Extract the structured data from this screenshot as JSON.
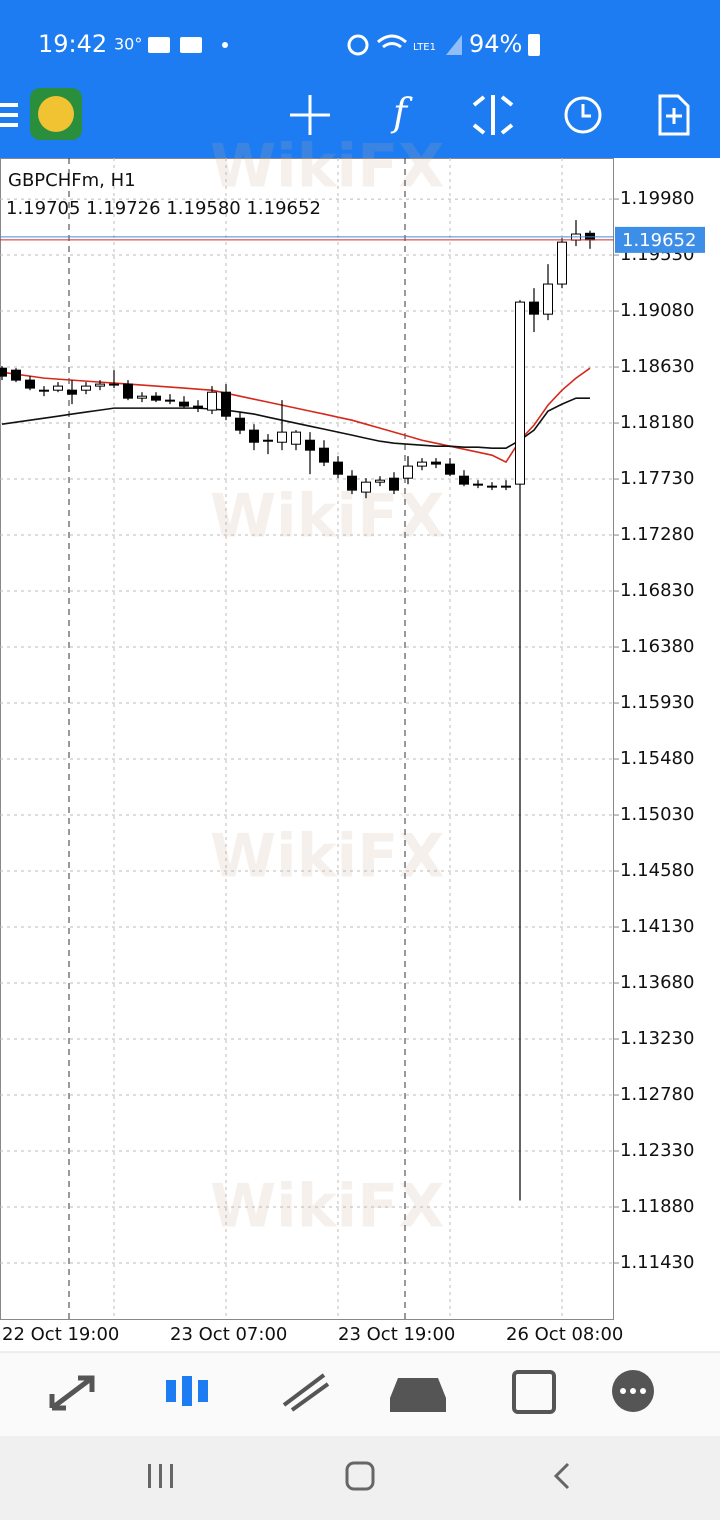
{
  "status_bar": {
    "time": "19:42",
    "temp": "30°",
    "network": "LTE1",
    "battery": "94%"
  },
  "watermark": "WikiFX",
  "chart_data": {
    "type": "candlestick",
    "title": "GBPCHFm, H1",
    "subtitle": "1.19705 1.19726 1.19580 1.19652",
    "categories": [
      "22 Oct 19:00",
      null,
      null,
      null,
      null,
      null,
      null,
      null,
      null,
      null,
      null,
      null,
      "23 Oct 07:00",
      null,
      null,
      null,
      null,
      null,
      null,
      null,
      null,
      null,
      null,
      null,
      "23 Oct 19:00",
      null,
      null,
      null,
      null,
      null,
      null,
      null,
      null,
      null,
      null,
      null,
      "26 Oct 08:00",
      null,
      null,
      null,
      null,
      null,
      null
    ],
    "open": [
      1.18621,
      1.18605,
      1.18525,
      1.18444,
      1.18444,
      1.18444,
      1.18444,
      1.18477,
      1.18493,
      1.18493,
      1.1838,
      1.18396,
      1.18364,
      1.18348,
      1.18316,
      1.18284,
      1.18428,
      1.18219,
      1.18123,
      1.18042,
      1.18026,
      1.1801,
      1.18042,
      1.17978,
      1.17866,
      1.17753,
      1.17625,
      1.17705,
      1.17737,
      1.17737,
      1.17834,
      1.17866,
      1.1785,
      1.17753,
      1.17689,
      1.17673,
      1.17673,
      1.17689,
      1.19152,
      1.19055,
      1.19297,
      1.1965,
      1.19705
    ],
    "high": [
      1.18637,
      1.18621,
      1.18557,
      1.18477,
      1.18509,
      1.18525,
      1.18509,
      1.18525,
      1.18605,
      1.18525,
      1.18428,
      1.18428,
      1.18412,
      1.18396,
      1.18364,
      1.18477,
      1.18493,
      1.18268,
      1.18171,
      1.18091,
      1.18364,
      1.18123,
      1.18107,
      1.18042,
      1.17914,
      1.17801,
      1.17737,
      1.17753,
      1.17785,
      1.17914,
      1.17898,
      1.17898,
      1.17898,
      1.17801,
      1.17721,
      1.17705,
      1.17721,
      1.19168,
      1.19264,
      1.19457,
      1.19666,
      1.19811,
      1.19726
    ],
    "low": [
      1.18525,
      1.18509,
      1.18444,
      1.18396,
      1.18428,
      1.18332,
      1.18412,
      1.18444,
      1.18461,
      1.18364,
      1.18348,
      1.18348,
      1.18332,
      1.183,
      1.18268,
      1.18252,
      1.18203,
      1.18091,
      1.17962,
      1.1793,
      1.17962,
      1.17962,
      1.17769,
      1.17834,
      1.17737,
      1.17609,
      1.17576,
      1.17673,
      1.17609,
      1.17689,
      1.17801,
      1.17818,
      1.17753,
      1.17673,
      1.17657,
      1.17641,
      1.17641,
      1.11932,
      1.18911,
      1.19007,
      1.19264,
      1.19602,
      1.1958
    ],
    "close": [
      1.18557,
      1.18525,
      1.18461,
      1.18444,
      1.18477,
      1.18412,
      1.18477,
      1.18493,
      1.18493,
      1.1838,
      1.18396,
      1.18364,
      1.18364,
      1.18316,
      1.183,
      1.18428,
      1.18235,
      1.18123,
      1.18026,
      1.18042,
      1.18107,
      1.18107,
      1.17962,
      1.17866,
      1.17769,
      1.17641,
      1.17705,
      1.17721,
      1.17641,
      1.17834,
      1.17866,
      1.1785,
      1.17769,
      1.17689,
      1.17689,
      1.17673,
      1.17673,
      1.19152,
      1.19055,
      1.19297,
      1.19634,
      1.19699,
      1.19652
    ],
    "up_color": "#ffffff",
    "down_color": "#000000",
    "series": [
      {
        "color": "#d42a1c",
        "values": [
          1.18589,
          1.18573,
          1.18557,
          1.18541,
          1.18533,
          1.18525,
          1.18517,
          1.18509,
          1.18501,
          1.18493,
          1.18485,
          1.18477,
          1.18469,
          1.18461,
          1.18452,
          1.18444,
          1.1842,
          1.18396,
          1.18372,
          1.18348,
          1.18324,
          1.183,
          1.18276,
          1.18252,
          1.18227,
          1.18203,
          1.18171,
          1.18139,
          1.18107,
          1.18075,
          1.18042,
          1.18018,
          1.17994,
          1.1797,
          1.17946,
          1.17922,
          1.17866,
          1.18042,
          1.18163,
          1.18324,
          1.18444,
          1.18541,
          1.18621
        ]
      },
      {
        "color": "#111111",
        "values": [
          1.18171,
          1.18187,
          1.18203,
          1.18219,
          1.18235,
          1.18252,
          1.18268,
          1.18284,
          1.183,
          1.183,
          1.183,
          1.183,
          1.183,
          1.183,
          1.183,
          1.18292,
          1.18284,
          1.18268,
          1.18252,
          1.18227,
          1.18203,
          1.18179,
          1.18155,
          1.18131,
          1.18107,
          1.18083,
          1.18058,
          1.18034,
          1.18018,
          1.1801,
          1.18002,
          1.17994,
          1.17994,
          1.17986,
          1.17986,
          1.17978,
          1.17978,
          1.18042,
          1.18123,
          1.18276,
          1.18332,
          1.1838,
          1.1838
        ]
      }
    ],
    "current_price": 1.19652,
    "current_price_color": "#3d8ee6",
    "ylim": [
      1.10972,
      1.2031
    ],
    "yticks": [
      {
        "value": 1.1998,
        "label": "1.19980"
      },
      {
        "value": 1.1953,
        "label": "1.19530"
      },
      {
        "value": 1.1908,
        "label": "1.19080"
      },
      {
        "value": 1.1863,
        "label": "1.18630"
      },
      {
        "value": 1.1818,
        "label": "1.18180"
      },
      {
        "value": 1.1773,
        "label": "1.17730"
      },
      {
        "value": 1.1728,
        "label": "1.17280"
      },
      {
        "value": 1.1683,
        "label": "1.16830"
      },
      {
        "value": 1.1638,
        "label": "1.16380"
      },
      {
        "value": 1.1593,
        "label": "1.15930"
      },
      {
        "value": 1.1548,
        "label": "1.15480"
      },
      {
        "value": 1.1503,
        "label": "1.15030"
      },
      {
        "value": 1.1458,
        "label": "1.14580"
      },
      {
        "value": 1.1413,
        "label": "1.14130"
      },
      {
        "value": 1.1368,
        "label": "1.13680"
      },
      {
        "value": 1.1323,
        "label": "1.13230"
      },
      {
        "value": 1.1278,
        "label": "1.12780"
      },
      {
        "value": 1.1233,
        "label": "1.12330"
      },
      {
        "value": 1.1188,
        "label": "1.11880"
      },
      {
        "value": 1.1143,
        "label": "1.11430"
      }
    ],
    "grid": true
  }
}
